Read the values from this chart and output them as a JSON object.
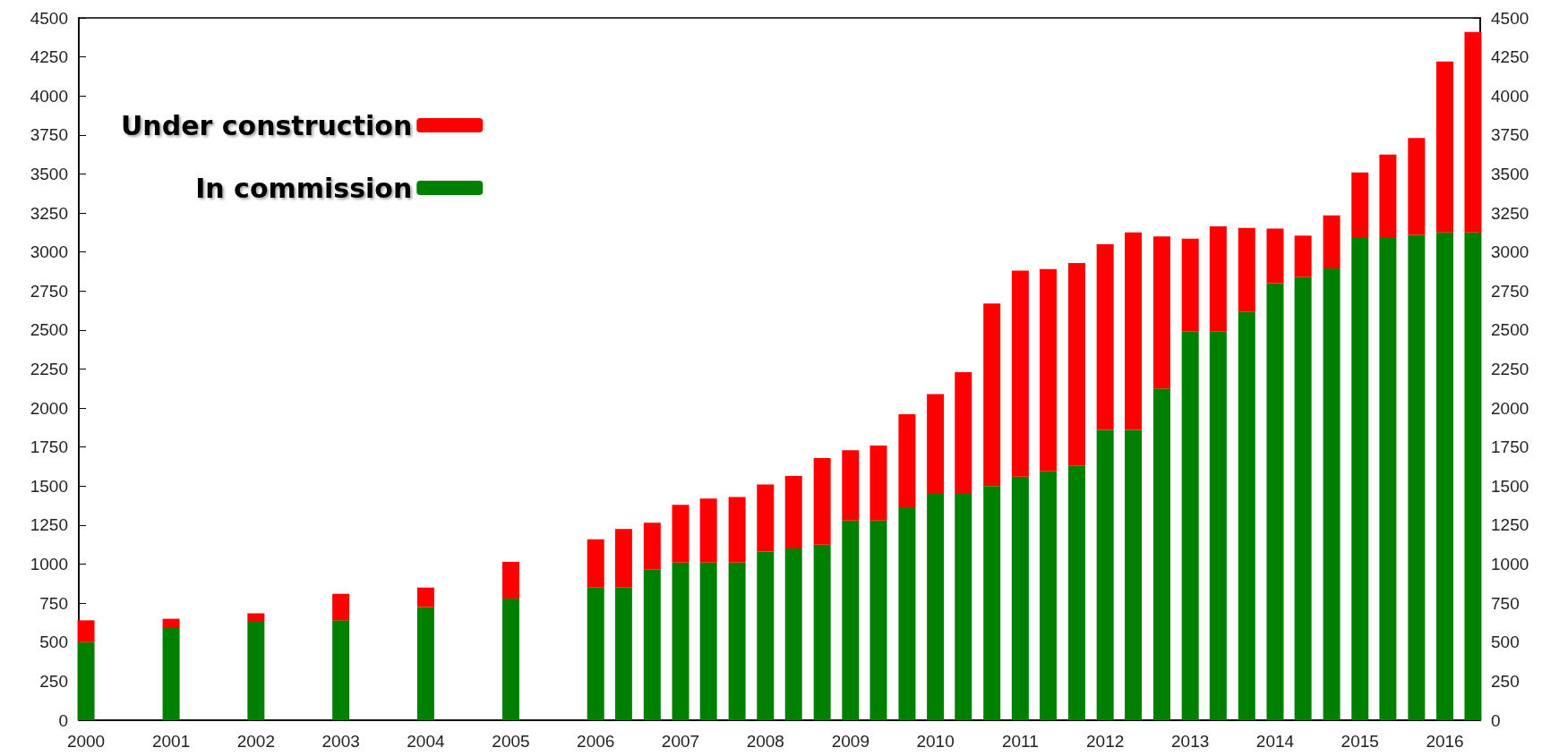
{
  "chart_data": {
    "type": "bar",
    "stacked": true,
    "x": [
      "2000",
      "2001",
      "2002",
      "2003",
      "2004",
      "2005",
      "2006-01",
      "2006-05",
      "2006-09",
      "2007-01",
      "2007-05",
      "2007-09",
      "2008-01",
      "2008-05",
      "2008-09",
      "2009-01",
      "2009-05",
      "2009-09",
      "2010-01",
      "2010-05",
      "2010-09",
      "2011-01",
      "2011-05",
      "2011-09",
      "2012-01",
      "2012-05",
      "2012-09",
      "2013-01",
      "2013-05",
      "2013-09",
      "2014-01",
      "2014-05",
      "2014-09",
      "2015-01",
      "2015-05",
      "2015-09",
      "2016-01",
      "2016-05"
    ],
    "series": [
      {
        "name": "In commission",
        "color": "#008000",
        "values": [
          500,
          590,
          630,
          640,
          725,
          780,
          850,
          850,
          965,
          1010,
          1010,
          1010,
          1080,
          1100,
          1125,
          1280,
          1280,
          1365,
          1450,
          1450,
          1500,
          1560,
          1595,
          1630,
          1860,
          1860,
          2125,
          2490,
          2490,
          2615,
          2800,
          2840,
          2895,
          3095,
          3095,
          3110,
          3125,
          3125
        ]
      },
      {
        "name": "Under construction",
        "color": "#ff0000",
        "values": [
          140,
          60,
          55,
          170,
          125,
          235,
          310,
          375,
          300,
          370,
          410,
          420,
          430,
          465,
          555,
          450,
          480,
          595,
          640,
          780,
          1170,
          1320,
          1295,
          1300,
          1190,
          1265,
          975,
          595,
          675,
          540,
          350,
          265,
          340,
          415,
          530,
          620,
          1095,
          1285
        ]
      }
    ],
    "xlim": [
      "1999-12",
      "2016-06"
    ],
    "xticks": [
      "2000",
      "2001",
      "2002",
      "2003",
      "2004",
      "2005",
      "2006",
      "2007",
      "2008",
      "2009",
      "2010",
      "2011",
      "2012",
      "2013",
      "2014",
      "2015",
      "2016"
    ],
    "ylim": [
      0,
      4500
    ],
    "yticks": [
      0,
      250,
      500,
      750,
      1000,
      1250,
      1500,
      1750,
      2000,
      2250,
      2500,
      2750,
      3000,
      3250,
      3500,
      3750,
      4000,
      4250,
      4500
    ],
    "y2lim": [
      0,
      4500
    ],
    "y2ticks": [
      0,
      250,
      500,
      750,
      1000,
      1250,
      1500,
      1750,
      2000,
      2250,
      2500,
      2750,
      3000,
      3250,
      3500,
      3750,
      4000,
      4250,
      4500
    ],
    "grid": false,
    "legend": "top left"
  }
}
